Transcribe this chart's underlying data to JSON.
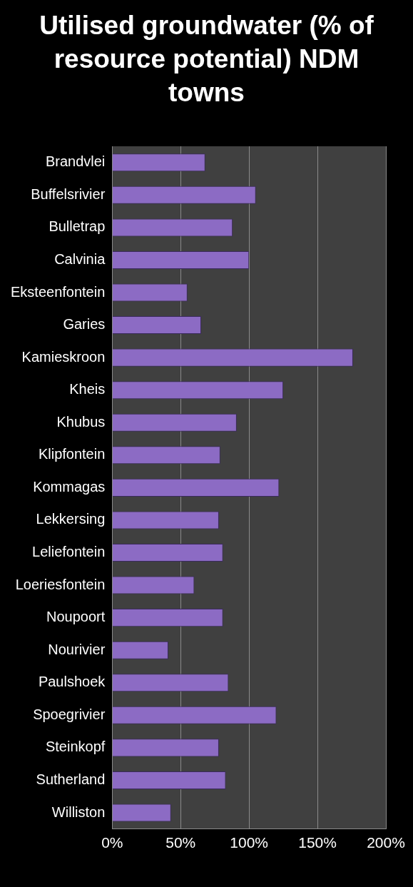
{
  "chart_data": {
    "type": "bar",
    "orientation": "horizontal",
    "title": "Utilised groundwater (% of resource potential) NDM towns",
    "categories": [
      "Brandvlei",
      "Buffelsrivier",
      "Bulletrap",
      "Calvinia",
      "Eksteenfontein",
      "Garies",
      "Kamieskroon",
      "Kheis",
      "Khubus",
      "Klipfontein",
      "Kommagas",
      "Lekkersing",
      "Leliefontein",
      "Loeriesfontein",
      "Noupoort",
      "Nourivier",
      "Paulshoek",
      "Spoegrivier",
      "Steinkopf",
      "Sutherland",
      "Williston"
    ],
    "values": [
      68,
      105,
      88,
      100,
      55,
      65,
      176,
      125,
      91,
      79,
      122,
      78,
      81,
      60,
      81,
      41,
      85,
      120,
      78,
      83,
      43
    ],
    "color": "#8c6bc4",
    "xlim": [
      0,
      200
    ],
    "xticks": [
      {
        "value": 0,
        "label": "0%"
      },
      {
        "value": 50,
        "label": "50%"
      },
      {
        "value": 100,
        "label": "100%"
      },
      {
        "value": 150,
        "label": "150%"
      },
      {
        "value": 200,
        "label": "200%"
      }
    ],
    "grid": "x"
  }
}
